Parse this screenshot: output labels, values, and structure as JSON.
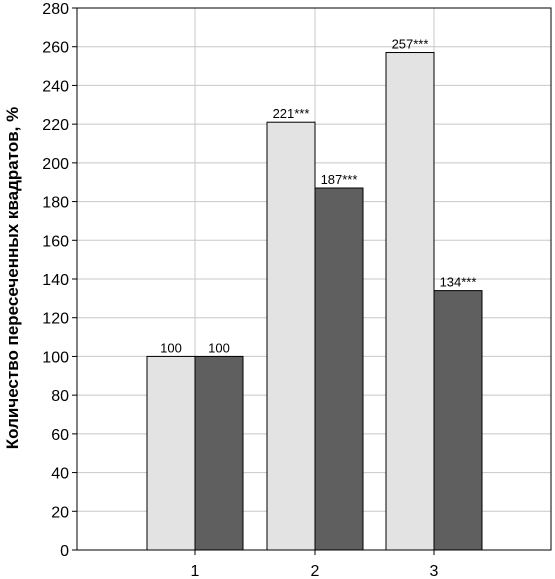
{
  "chart_data": {
    "type": "bar",
    "title": "",
    "xlabel": "",
    "ylabel": "Количество пересеченных квадратов, %",
    "ylim": [
      0,
      280
    ],
    "yticks": [
      0,
      20,
      40,
      60,
      80,
      100,
      120,
      140,
      160,
      180,
      200,
      220,
      240,
      260,
      280
    ],
    "categories": [
      "1",
      "2",
      "3"
    ],
    "grid": true,
    "legend": "none",
    "series": [
      {
        "color": "#e3e3e3",
        "values": [
          100,
          221,
          257
        ],
        "labels": [
          "100",
          "221***",
          "257***"
        ]
      },
      {
        "color": "#5f5f5f",
        "values": [
          100,
          187,
          134
        ],
        "labels": [
          "100",
          "187***",
          "134***"
        ]
      }
    ]
  }
}
